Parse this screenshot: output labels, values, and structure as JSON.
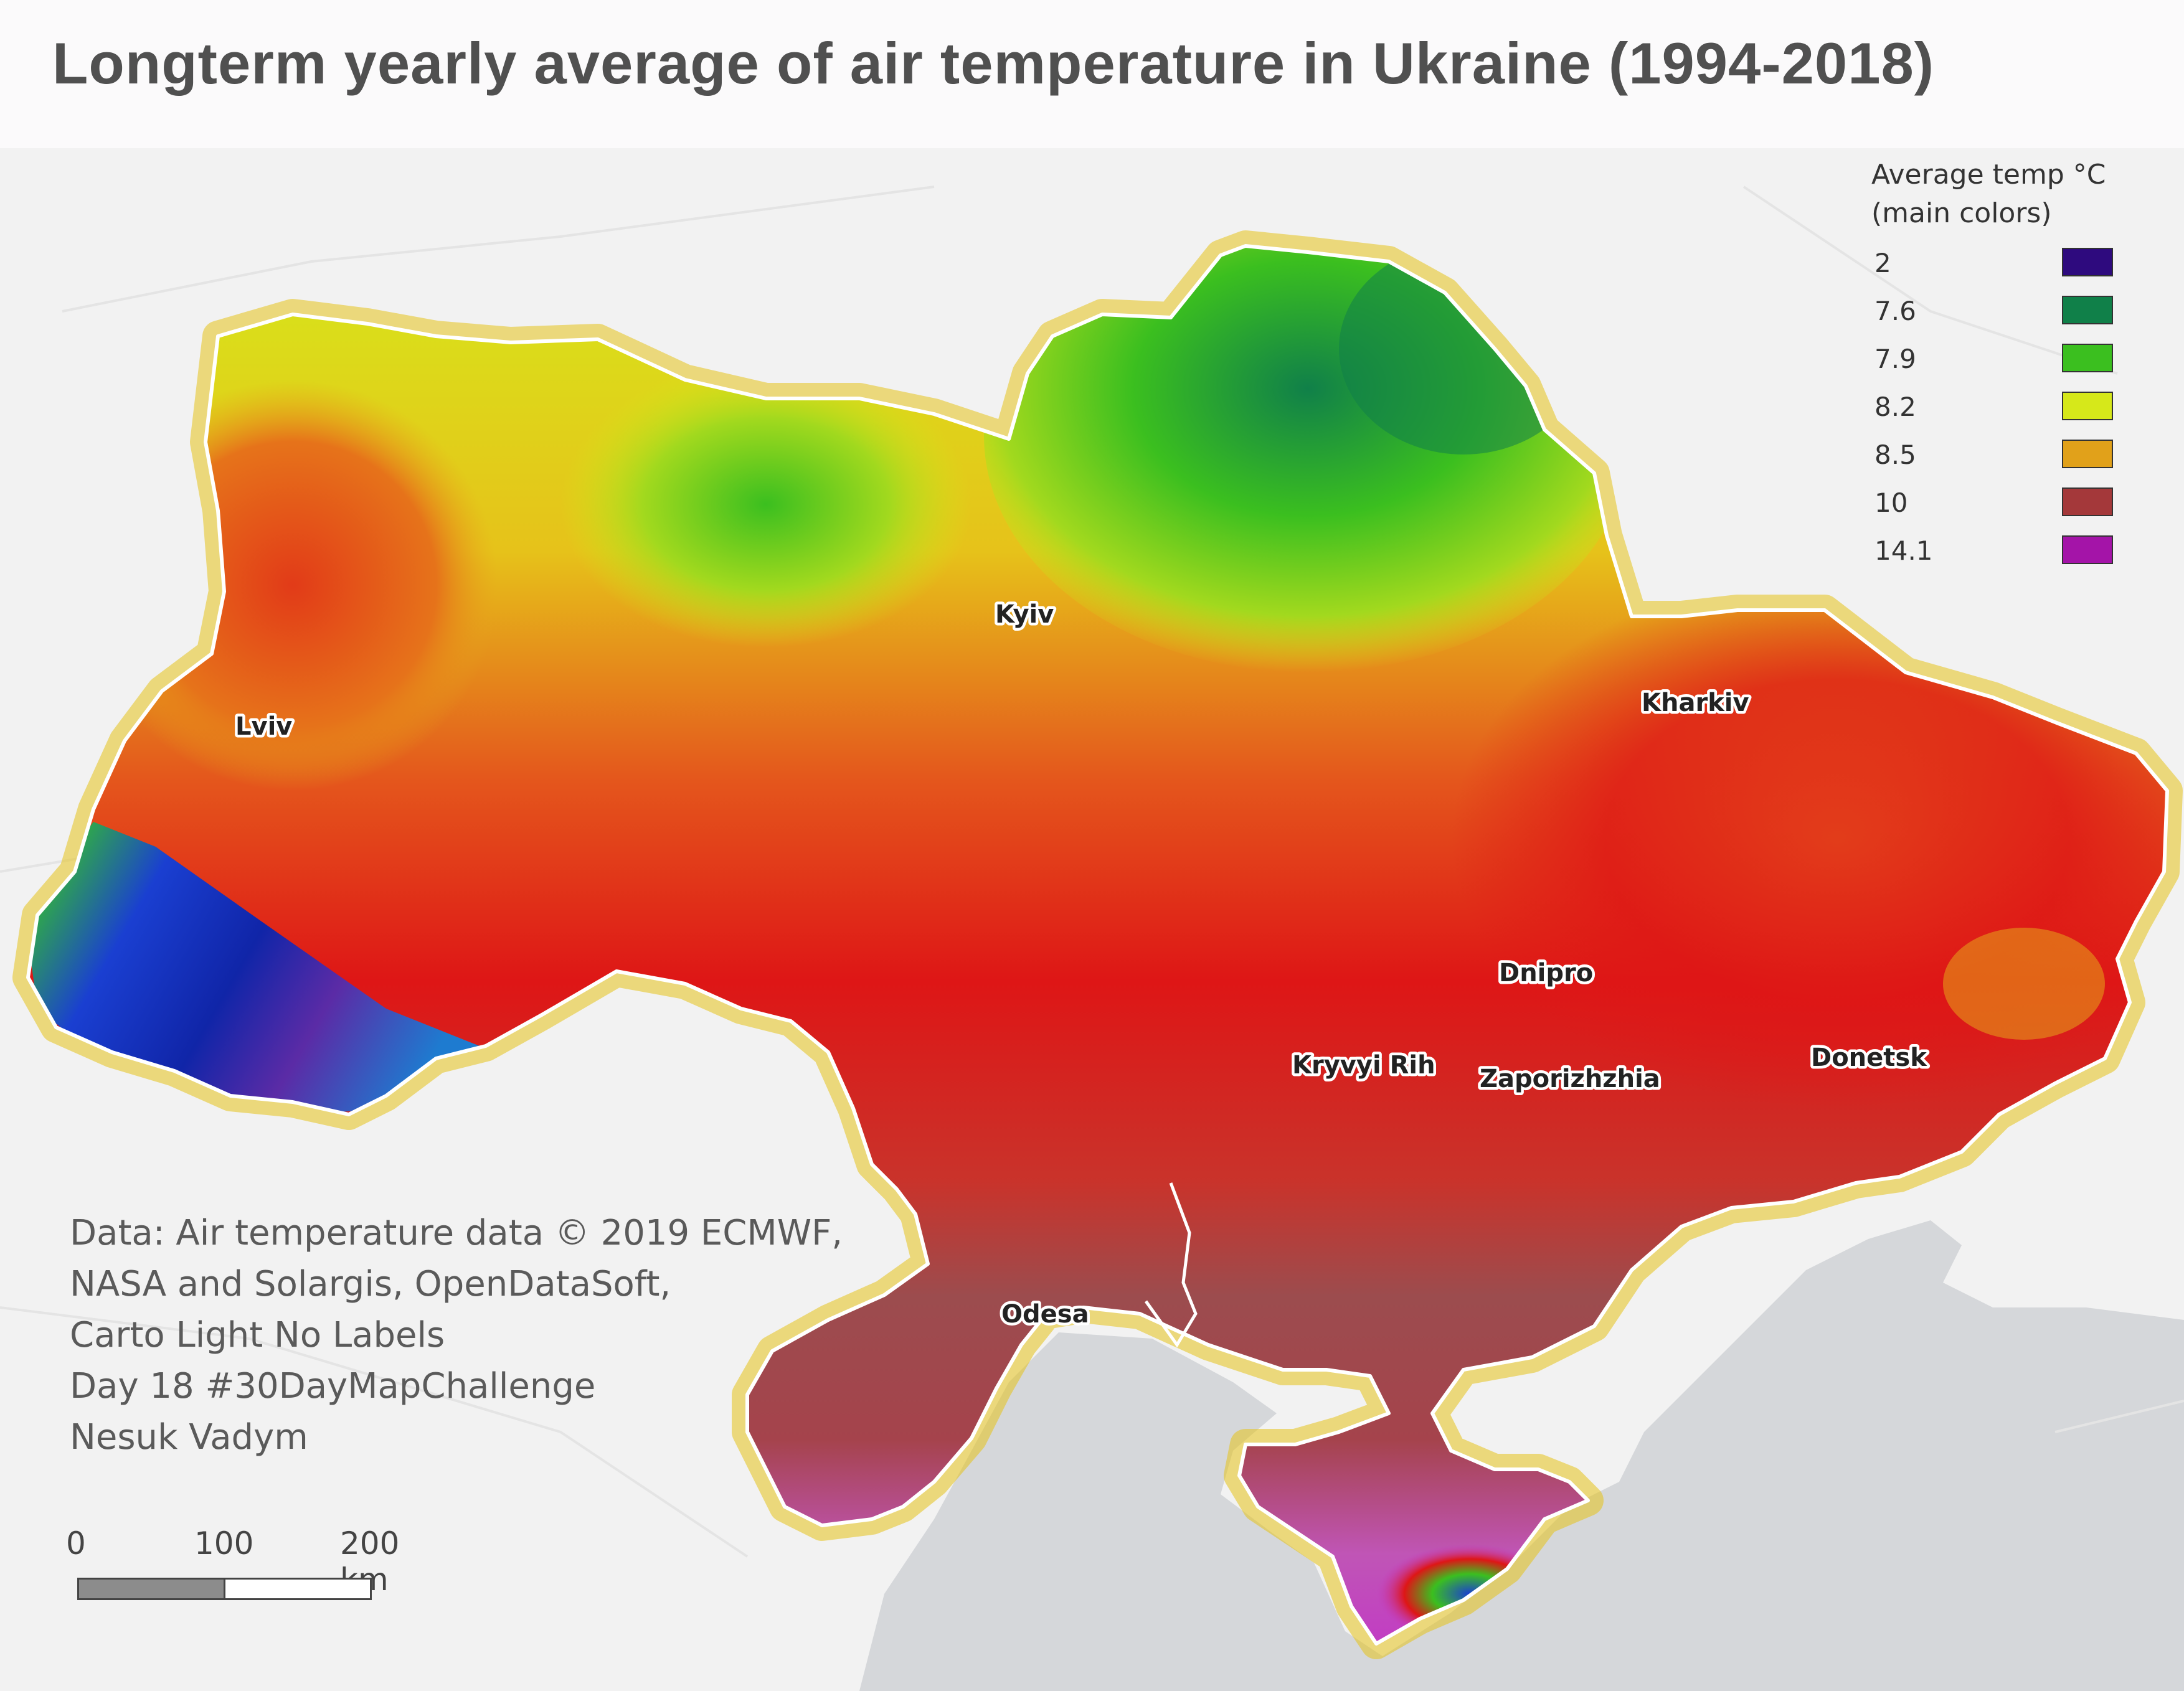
{
  "title": "Longterm yearly average of air temperature in Ukraine (1994-2018)",
  "legend": {
    "title": "Average temp °C",
    "subtitle": "(main colors)",
    "items": [
      {
        "label": "2",
        "color": "#2e0a7e"
      },
      {
        "label": "7.6",
        "color": "#108049"
      },
      {
        "label": "7.9",
        "color": "#3bbf1f"
      },
      {
        "label": "8.2",
        "color": "#d6e81a"
      },
      {
        "label": "8.5",
        "color": "#e1a11a"
      },
      {
        "label": "10",
        "color": "#a4383a"
      },
      {
        "label": "14.1",
        "color": "#a414a8"
      }
    ]
  },
  "cities": {
    "kyiv": "Kyiv",
    "lviv": "Lviv",
    "kharkiv": "Kharkiv",
    "dnipro": "Dnipro",
    "kryvyi_rih": "Kryvyi Rih",
    "zaporizhzhia": "Zaporizhzhia",
    "donetsk": "Donetsk",
    "odesa": "Odesa"
  },
  "credits": [
    "Data: Air temperature data © 2019 ECMWF,",
    "NASA and Solargis, OpenDataSoft,",
    "Carto Light No Labels",
    "Day 18 #30DayMapChallenge",
    "Nesuk Vadym"
  ],
  "scale": {
    "ticks": [
      "0",
      "100",
      "200 km"
    ]
  },
  "colors": {
    "background": "#f4f4f4",
    "sea": "#d5d7da",
    "border": "#ffffff"
  }
}
